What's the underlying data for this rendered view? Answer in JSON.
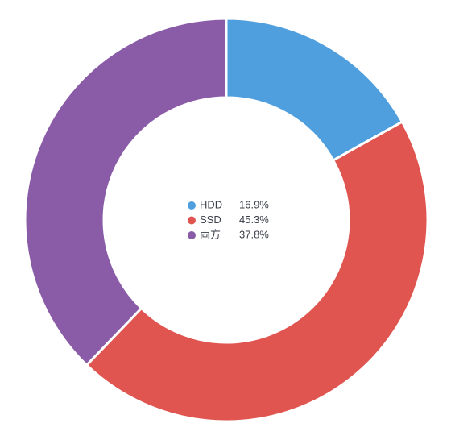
{
  "chart_data": {
    "type": "donut",
    "categories": [
      "HDD",
      "SSD",
      "両方"
    ],
    "values": [
      16.9,
      45.3,
      37.8
    ],
    "value_labels": [
      "16.9%",
      "45.3%",
      "37.8%"
    ],
    "colors": [
      "#4f9fdf",
      "#e05550",
      "#8a5ca8"
    ]
  }
}
